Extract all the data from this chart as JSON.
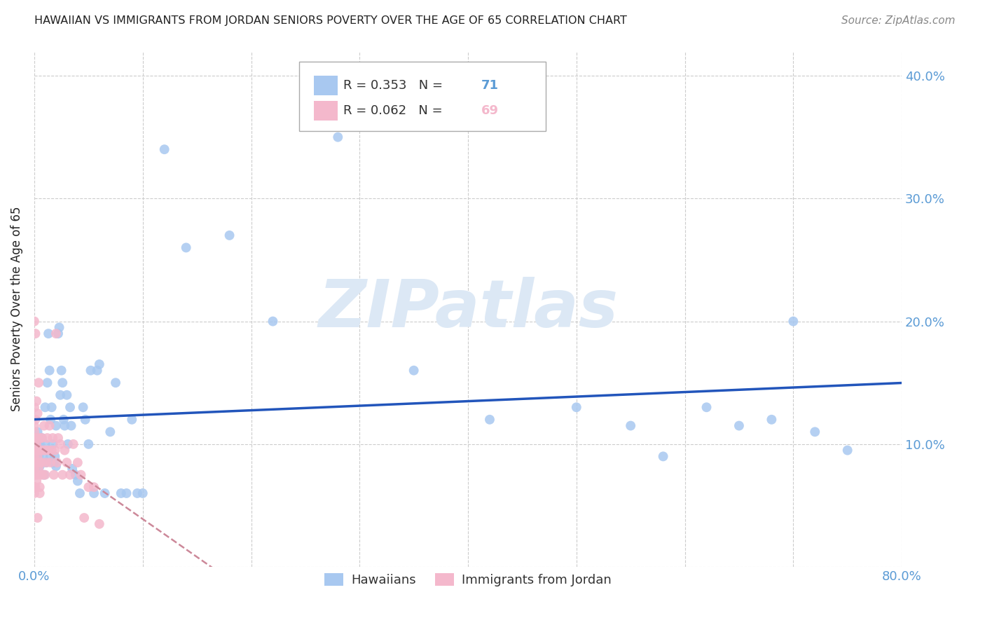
{
  "title": "HAWAIIAN VS IMMIGRANTS FROM JORDAN SENIORS POVERTY OVER THE AGE OF 65 CORRELATION CHART",
  "source": "Source: ZipAtlas.com",
  "ylabel": "Seniors Poverty Over the Age of 65",
  "xlim": [
    0.0,
    0.8
  ],
  "ylim": [
    0.0,
    0.42
  ],
  "xticks": [
    0.0,
    0.1,
    0.2,
    0.3,
    0.4,
    0.5,
    0.6,
    0.7,
    0.8
  ],
  "yticks": [
    0.0,
    0.1,
    0.2,
    0.3,
    0.4
  ],
  "watermark": "ZIPatlas",
  "hawaiians_color": "#a8c8f0",
  "jordan_color": "#f4b8cc",
  "title_color": "#222222",
  "axis_label_color": "#5b9bd5",
  "grid_color": "#cccccc",
  "watermark_color": "#dce8f5",
  "reg_blue": "#2255bb",
  "reg_pink": "#cc8899",
  "hawaiians_R": "0.353",
  "hawaiians_N": "71",
  "jordan_R": "0.062",
  "jordan_N": "69",
  "hawaiians_x": [
    0.001,
    0.001,
    0.002,
    0.003,
    0.004,
    0.005,
    0.005,
    0.006,
    0.007,
    0.008,
    0.009,
    0.01,
    0.01,
    0.011,
    0.012,
    0.013,
    0.014,
    0.015,
    0.015,
    0.016,
    0.017,
    0.018,
    0.019,
    0.02,
    0.02,
    0.022,
    0.023,
    0.024,
    0.025,
    0.026,
    0.027,
    0.028,
    0.03,
    0.031,
    0.033,
    0.034,
    0.035,
    0.038,
    0.04,
    0.042,
    0.045,
    0.047,
    0.05,
    0.052,
    0.055,
    0.058,
    0.06,
    0.065,
    0.07,
    0.075,
    0.08,
    0.085,
    0.09,
    0.095,
    0.1,
    0.12,
    0.14,
    0.18,
    0.22,
    0.28,
    0.35,
    0.42,
    0.5,
    0.55,
    0.58,
    0.62,
    0.65,
    0.68,
    0.7,
    0.72,
    0.75
  ],
  "hawaiians_y": [
    0.1,
    0.08,
    0.095,
    0.11,
    0.09,
    0.1,
    0.082,
    0.095,
    0.105,
    0.09,
    0.075,
    0.1,
    0.13,
    0.085,
    0.15,
    0.19,
    0.16,
    0.12,
    0.09,
    0.13,
    0.1,
    0.085,
    0.09,
    0.115,
    0.082,
    0.19,
    0.195,
    0.14,
    0.16,
    0.15,
    0.12,
    0.115,
    0.14,
    0.1,
    0.13,
    0.115,
    0.08,
    0.075,
    0.07,
    0.06,
    0.13,
    0.12,
    0.1,
    0.16,
    0.06,
    0.16,
    0.165,
    0.06,
    0.11,
    0.15,
    0.06,
    0.06,
    0.12,
    0.06,
    0.06,
    0.34,
    0.26,
    0.27,
    0.2,
    0.35,
    0.16,
    0.12,
    0.13,
    0.115,
    0.09,
    0.13,
    0.115,
    0.12,
    0.2,
    0.11,
    0.095
  ],
  "jordan_x": [
    0.0,
    0.0,
    0.0,
    0.0,
    0.0,
    0.0,
    0.0,
    0.0,
    0.0,
    0.0,
    0.0,
    0.001,
    0.001,
    0.001,
    0.001,
    0.001,
    0.002,
    0.002,
    0.002,
    0.003,
    0.003,
    0.003,
    0.004,
    0.004,
    0.005,
    0.005,
    0.005,
    0.006,
    0.006,
    0.007,
    0.007,
    0.008,
    0.008,
    0.009,
    0.01,
    0.01,
    0.011,
    0.012,
    0.013,
    0.014,
    0.015,
    0.016,
    0.017,
    0.018,
    0.019,
    0.02,
    0.021,
    0.022,
    0.024,
    0.026,
    0.028,
    0.03,
    0.033,
    0.036,
    0.04,
    0.043,
    0.046,
    0.05,
    0.055,
    0.06,
    0.0,
    0.0,
    0.001,
    0.001,
    0.002,
    0.003,
    0.003,
    0.004,
    0.005
  ],
  "jordan_y": [
    0.06,
    0.065,
    0.075,
    0.08,
    0.085,
    0.09,
    0.095,
    0.1,
    0.105,
    0.11,
    0.115,
    0.065,
    0.075,
    0.085,
    0.095,
    0.105,
    0.07,
    0.085,
    0.1,
    0.075,
    0.09,
    0.105,
    0.08,
    0.095,
    0.065,
    0.085,
    0.105,
    0.075,
    0.095,
    0.085,
    0.105,
    0.075,
    0.095,
    0.115,
    0.075,
    0.095,
    0.085,
    0.105,
    0.095,
    0.115,
    0.085,
    0.095,
    0.105,
    0.075,
    0.095,
    0.19,
    0.085,
    0.105,
    0.1,
    0.075,
    0.095,
    0.085,
    0.075,
    0.1,
    0.085,
    0.075,
    0.04,
    0.065,
    0.065,
    0.035,
    0.13,
    0.2,
    0.12,
    0.19,
    0.135,
    0.125,
    0.04,
    0.15,
    0.06
  ]
}
